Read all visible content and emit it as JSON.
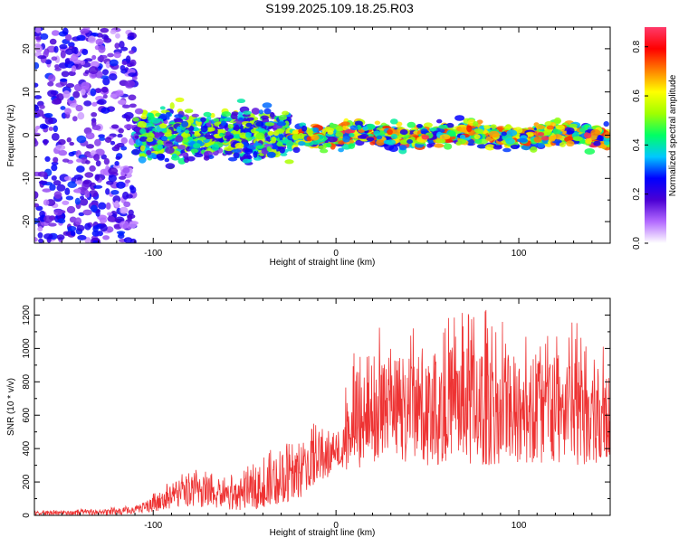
{
  "title": "S199.2025.109.18.25.R03",
  "chart_data": [
    {
      "type": "heatmap",
      "title": "S199.2025.109.18.25.R03",
      "xlabel": "Height of straight line (km)",
      "ylabel": "Frequency (Hz)",
      "xlim": [
        -165,
        150
      ],
      "ylim": [
        -25,
        25
      ],
      "xticks": [
        -100,
        0,
        100
      ],
      "yticks": [
        -20,
        -10,
        0,
        10,
        20
      ],
      "grid": false,
      "colorbar": {
        "label": "Normalized spectral amplitude",
        "range": [
          0,
          0.88
        ],
        "ticks": [
          0.0,
          0.2,
          0.4,
          0.6,
          0.8
        ],
        "colors": [
          "#ffffff",
          "#b36aff",
          "#4b00d4",
          "#0000ff",
          "#00c8ff",
          "#00ff64",
          "#a0ff00",
          "#ffff00",
          "#ff8000",
          "#ff0000",
          "#ff3a6a"
        ]
      },
      "features": [
        {
          "x_range": [
            -165,
            -110
          ],
          "freq_range": [
            -25,
            25
          ],
          "amplitude": 0.18,
          "note": "broadband scattered energy"
        },
        {
          "x_range": [
            -110,
            -25
          ],
          "freq_range": [
            -8,
            6
          ],
          "amplitude": 0.3
        },
        {
          "x_range": [
            -25,
            150
          ],
          "freq_range": [
            -2,
            2
          ],
          "amplitude": 0.55,
          "peak_amplitude": 0.86,
          "centre_frequency": 0
        }
      ]
    },
    {
      "type": "line",
      "xlabel": "Height of straight line (km)",
      "ylabel": "SNR (10 * v/v)",
      "xlim": [
        -165,
        150
      ],
      "ylim": [
        0,
        1300
      ],
      "xticks": [
        -100,
        0,
        100
      ],
      "yticks": [
        0,
        200,
        400,
        600,
        800,
        1000,
        1200
      ],
      "grid": false,
      "color": "#ee3333",
      "envelope": {
        "x": [
          -165,
          -130,
          -110,
          -100,
          -90,
          -80,
          -70,
          -60,
          -50,
          -40,
          -30,
          -20,
          -10,
          0,
          10,
          20,
          30,
          40,
          50,
          60,
          70,
          80,
          90,
          100,
          110,
          120,
          130,
          140,
          150
        ],
        "y_low": [
          0,
          0,
          5,
          20,
          40,
          50,
          40,
          30,
          30,
          40,
          60,
          100,
          180,
          250,
          280,
          300,
          300,
          320,
          300,
          300,
          310,
          300,
          300,
          300,
          320,
          300,
          300,
          300,
          300
        ],
        "y_mid": [
          15,
          20,
          30,
          80,
          130,
          160,
          140,
          120,
          130,
          160,
          230,
          290,
          330,
          380,
          480,
          560,
          600,
          620,
          610,
          630,
          630,
          620,
          630,
          650,
          640,
          630,
          630,
          640,
          650
        ],
        "y_high": [
          30,
          40,
          60,
          130,
          220,
          300,
          260,
          240,
          280,
          360,
          450,
          520,
          560,
          560,
          1000,
          1150,
          1100,
          1200,
          1180,
          1200,
          1300,
          1250,
          1180,
          1200,
          1220,
          1180,
          1200,
          1100,
          1000
        ]
      }
    }
  ]
}
